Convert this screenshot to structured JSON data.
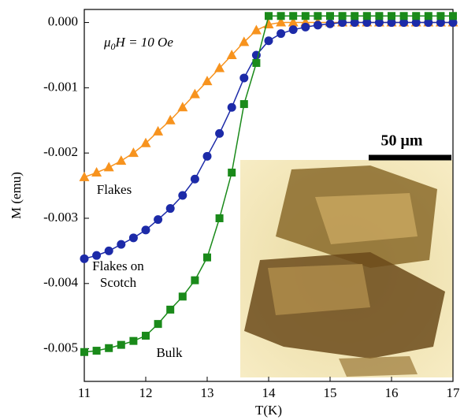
{
  "chart_data": {
    "type": "line",
    "x_label": "T(K)",
    "y_label": "M (emu)",
    "field_label": [
      "μ",
      "0",
      "H = 10 Oe"
    ],
    "scale_bar_label": "50 μm",
    "xlim": [
      11,
      17
    ],
    "xticks": [
      11,
      12,
      13,
      14,
      15,
      16,
      17
    ],
    "ylim": [
      -0.0055,
      0.0002
    ],
    "yticks": [
      {
        "value": 0,
        "label": "0.000"
      },
      -0.001,
      -0.002,
      -0.003,
      -0.004,
      -0.005
    ],
    "x": [
      11,
      11.2,
      11.4,
      11.6,
      11.8,
      12,
      12.2,
      12.4,
      12.6,
      12.8,
      13,
      13.2,
      13.4,
      13.6,
      13.8,
      14,
      14.2,
      14.4,
      14.6,
      14.8,
      15,
      15.2,
      15.4,
      15.6,
      15.8,
      16,
      16.2,
      16.4,
      16.6,
      16.8,
      17
    ],
    "series": [
      {
        "name": "Flakes",
        "color": "#f7931e",
        "marker": "triangle",
        "values": [
          -0.00237,
          -0.0023,
          -0.00222,
          -0.00212,
          -0.002,
          -0.00185,
          -0.00167,
          -0.0015,
          -0.0013,
          -0.0011,
          -0.0009,
          -0.0007,
          -0.0005,
          -0.0003,
          -0.00012,
          -3e-05,
          0,
          0,
          0,
          0,
          0,
          0,
          0,
          0,
          0,
          0,
          0,
          0,
          0,
          0,
          0
        ]
      },
      {
        "name": "Flakes on Scotch",
        "color": "#1c2aa8",
        "marker": "circle",
        "values": [
          -0.00362,
          -0.00357,
          -0.0035,
          -0.0034,
          -0.0033,
          -0.00318,
          -0.00302,
          -0.00285,
          -0.00265,
          -0.0024,
          -0.00205,
          -0.0017,
          -0.0013,
          -0.00085,
          -0.0005,
          -0.00028,
          -0.00017,
          -0.00011,
          -7e-05,
          -4e-05,
          -2e-05,
          0,
          0,
          0,
          0,
          0,
          0,
          0,
          0,
          0,
          0
        ]
      },
      {
        "name": "Bulk",
        "color": "#1a8a1a",
        "marker": "square",
        "values": [
          -0.00505,
          -0.00503,
          -0.00499,
          -0.00494,
          -0.00488,
          -0.0048,
          -0.00462,
          -0.0044,
          -0.0042,
          -0.00395,
          -0.0036,
          -0.003,
          -0.0023,
          -0.00125,
          -0.00062,
          0.0001,
          0.0001,
          0.0001,
          0.0001,
          0.0001,
          0.0001,
          0.0001,
          0.0001,
          0.0001,
          0.0001,
          0.0001,
          0.0001,
          0.0001,
          0.0001,
          0.0001,
          0.0001
        ]
      }
    ]
  }
}
